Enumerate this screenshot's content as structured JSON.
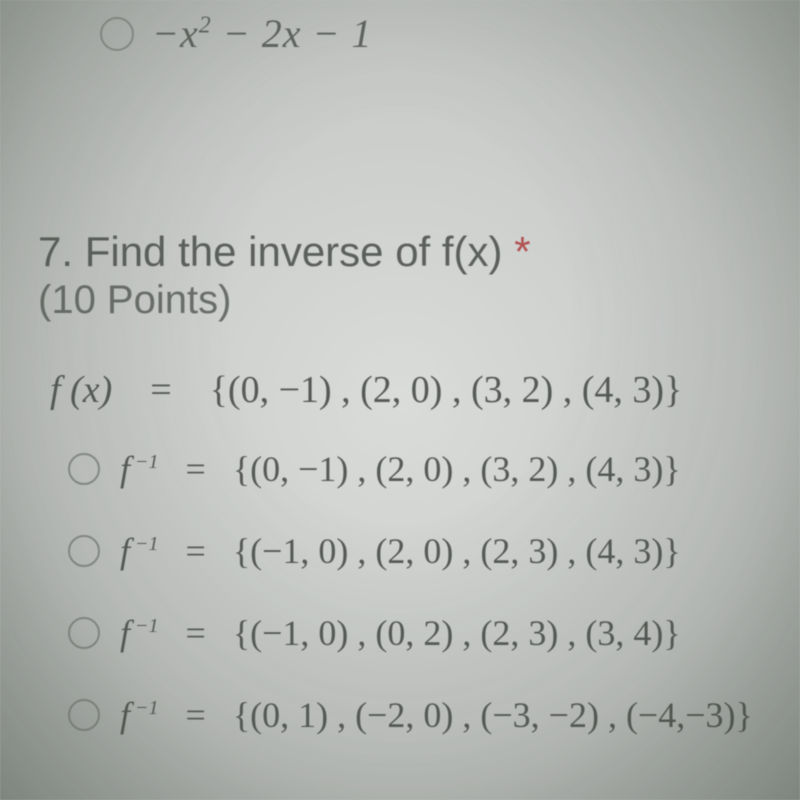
{
  "colors": {
    "text": "#5a5e5a",
    "asterisk": "#b05050",
    "radio_border": "#8a8e8a",
    "bg_center": "#dadcda",
    "bg_edge": "#a8aca8"
  },
  "typography": {
    "question_fontsize": 42,
    "points_fontsize": 40,
    "math_fontsize": 38,
    "option_fontsize": 36,
    "sup_fontsize": 20,
    "question_font": "Segoe UI",
    "math_font": "Times New Roman"
  },
  "partial_option": {
    "expression": "−x² − 2x − 1",
    "expression_plain": "-x^2 - 2x - 1"
  },
  "question": {
    "number": "7.",
    "text": "Find the inverse of f(x) ",
    "required_marker": "*",
    "points": "(10 Points)"
  },
  "definition": {
    "lhs_fx": "f (x)",
    "eq": "=",
    "set": "{(0, −1) , (2,  0) , (3, 2) , (4, 3)}"
  },
  "options": [
    {
      "lhs": "f⁻¹",
      "eq": "=",
      "set": "{(0, −1) , (2,  0) , (3, 2) , (4, 3)}"
    },
    {
      "lhs": "f⁻¹",
      "eq": "=",
      "set": "{(−1, 0) , (2,  0) , (2, 3) , (4, 3)}"
    },
    {
      "lhs": "f⁻¹",
      "eq": "=",
      "set": "{(−1, 0) , (0,  2) , (2, 3) , (3, 4)}"
    },
    {
      "lhs": "f⁻¹",
      "eq": "=",
      "set": "{(0, 1) , (−2,  0) , (−3, −2) , (−4,−3)}"
    }
  ]
}
